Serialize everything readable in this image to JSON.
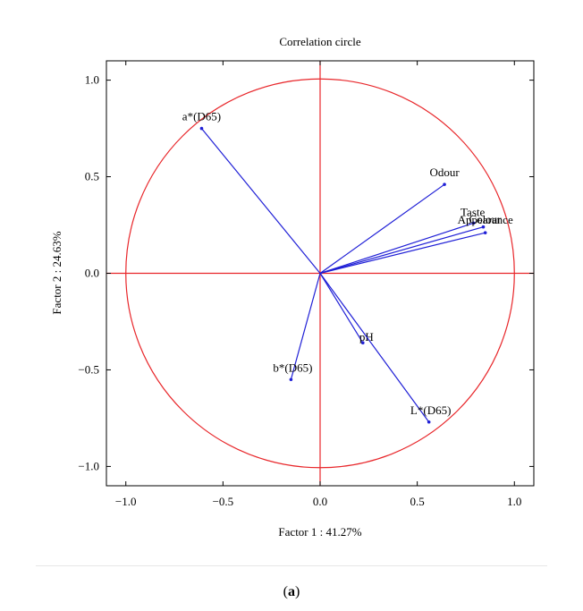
{
  "chart_data": {
    "type": "scatter",
    "title": "Correlation circle",
    "xlabel": "Factor 1 : 41.27%",
    "ylabel": "Factor 2 : 24.63%",
    "xlim": [
      -1.1,
      1.1
    ],
    "ylim": [
      -1.1,
      1.1
    ],
    "xticks": [
      -1.0,
      -0.5,
      0.0,
      0.5,
      1.0
    ],
    "yticks": [
      -1.0,
      -0.5,
      0.0,
      0.5,
      1.0
    ],
    "xtick_labels": [
      "−1.0",
      "−0.5",
      "0.0",
      "0.5",
      "1.0"
    ],
    "ytick_labels": [
      "−1.0",
      "−0.5",
      "0.0",
      "0.5",
      "1.0"
    ],
    "grid": false,
    "unit_circle": true,
    "circle_color": "#e8262a",
    "vector_color": "#1f1fd6",
    "variables": [
      {
        "name": "a*(D65)",
        "x": -0.61,
        "y": 0.75
      },
      {
        "name": "Odour",
        "x": 0.64,
        "y": 0.46
      },
      {
        "name": "Taste",
        "x": 0.79,
        "y": 0.26
      },
      {
        "name": "Colour",
        "x": 0.84,
        "y": 0.24
      },
      {
        "name": "Appearance",
        "x": 0.85,
        "y": 0.21
      },
      {
        "name": "pH",
        "x": 0.22,
        "y": -0.36
      },
      {
        "name": "b*(D65)",
        "x": -0.15,
        "y": -0.55
      },
      {
        "name": "L*(D65)",
        "x": 0.56,
        "y": -0.77
      }
    ]
  },
  "caption": {
    "label": "a"
  }
}
